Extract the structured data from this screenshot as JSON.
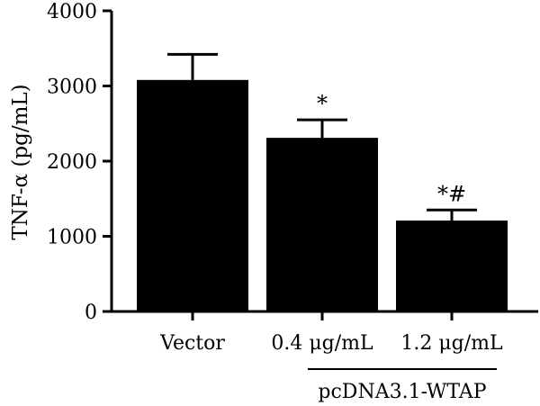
{
  "chart_data": {
    "type": "bar",
    "title": "",
    "ylabel": "TNF-α (pg/mL)",
    "xlabel": "",
    "ylim": [
      0,
      4000
    ],
    "yticks": [
      0,
      1000,
      2000,
      3000,
      4000
    ],
    "categories": [
      "Vector",
      "0.4 μg/mL",
      "1.2 μg/mL"
    ],
    "values": [
      3080,
      2310,
      1210
    ],
    "errors": [
      340,
      240,
      140
    ],
    "significance": [
      "",
      "*",
      "*#"
    ],
    "group_label": "pcDNA3.1-WTAP",
    "group_categories": [
      "0.4 μg/mL",
      "1.2 μg/mL"
    ],
    "bar_color": "#000000",
    "grid": false,
    "legend": "none"
  }
}
